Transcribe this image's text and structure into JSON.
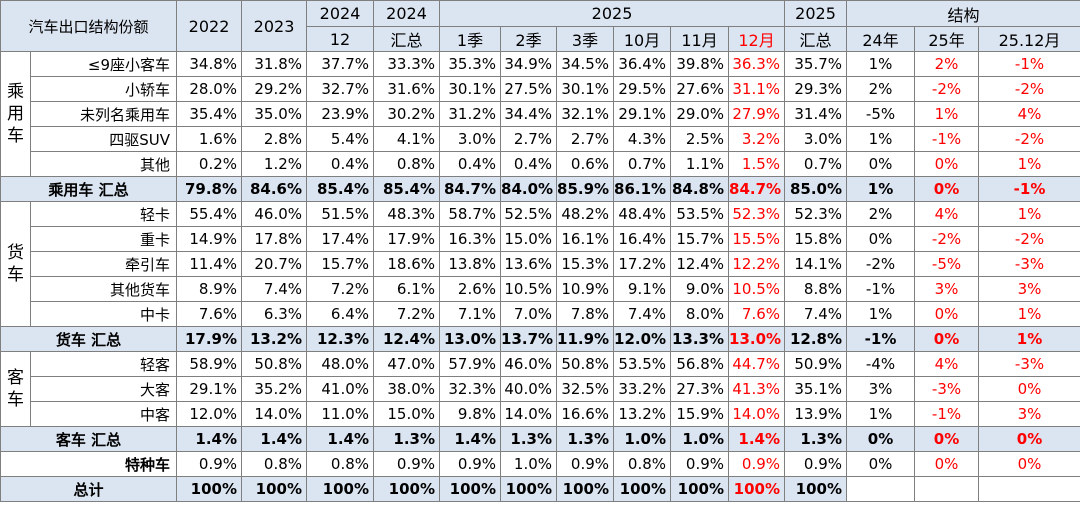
{
  "header": {
    "title": "汽车出口结构份额",
    "y2022": "2022",
    "y2023": "2023",
    "y2024a": "2024",
    "y2024a_sub": "12",
    "y2024b": "2024",
    "y2024b_sub": "汇总",
    "y2025": "2025",
    "q1": "1季",
    "q2": "2季",
    "q3": "3季",
    "m10": "10月",
    "m11": "11月",
    "m12": "12月",
    "y2025t": "2025",
    "y2025t_sub": "汇总",
    "structure": "结构",
    "s24": "24年",
    "s25": "25年",
    "s2512": "25.12月"
  },
  "groups": {
    "passenger": "乘用车",
    "truck": "货车",
    "bus": "客车"
  },
  "rows": [
    {
      "name": "≤9座小客车",
      "v": [
        "34.8%",
        "31.8%",
        "37.7%",
        "33.3%",
        "35.3%",
        "34.9%",
        "34.5%",
        "36.4%",
        "39.8%",
        "36.3%",
        "35.7%",
        "1%",
        "2%",
        "-1%"
      ]
    },
    {
      "name": "小轿车",
      "v": [
        "28.0%",
        "29.2%",
        "32.7%",
        "31.6%",
        "30.1%",
        "27.5%",
        "30.1%",
        "29.5%",
        "27.6%",
        "31.1%",
        "29.3%",
        "2%",
        "-2%",
        "-2%"
      ]
    },
    {
      "name": "未列名乘用车",
      "v": [
        "35.4%",
        "35.0%",
        "23.9%",
        "30.2%",
        "31.2%",
        "34.4%",
        "32.1%",
        "29.1%",
        "29.0%",
        "27.9%",
        "31.4%",
        "-5%",
        "1%",
        "4%"
      ]
    },
    {
      "name": "四驱SUV",
      "v": [
        "1.6%",
        "2.8%",
        "5.4%",
        "4.1%",
        "3.0%",
        "2.7%",
        "2.7%",
        "4.3%",
        "2.5%",
        "3.2%",
        "3.0%",
        "1%",
        "-1%",
        "-2%"
      ]
    },
    {
      "name": "其他",
      "v": [
        "0.2%",
        "1.2%",
        "0.4%",
        "0.8%",
        "0.4%",
        "0.4%",
        "0.6%",
        "0.7%",
        "1.1%",
        "1.5%",
        "0.7%",
        "0%",
        "0%",
        "1%"
      ]
    },
    {
      "name": "乘用车 汇总",
      "v": [
        "79.8%",
        "84.6%",
        "85.4%",
        "85.4%",
        "84.7%",
        "84.0%",
        "85.9%",
        "86.1%",
        "84.8%",
        "84.7%",
        "85.0%",
        "1%",
        "0%",
        "-1%"
      ]
    },
    {
      "name": "轻卡",
      "v": [
        "55.4%",
        "46.0%",
        "51.5%",
        "48.3%",
        "58.7%",
        "52.5%",
        "48.2%",
        "48.4%",
        "53.5%",
        "52.3%",
        "52.3%",
        "2%",
        "4%",
        "1%"
      ]
    },
    {
      "name": "重卡",
      "v": [
        "14.9%",
        "17.8%",
        "17.4%",
        "17.9%",
        "16.3%",
        "15.0%",
        "16.1%",
        "16.4%",
        "15.7%",
        "15.5%",
        "15.8%",
        "0%",
        "-2%",
        "-2%"
      ]
    },
    {
      "name": "牵引车",
      "v": [
        "11.4%",
        "20.7%",
        "15.7%",
        "18.6%",
        "13.8%",
        "13.6%",
        "15.3%",
        "17.2%",
        "12.4%",
        "12.2%",
        "14.1%",
        "-2%",
        "-5%",
        "-3%"
      ]
    },
    {
      "name": "其他货车",
      "v": [
        "8.9%",
        "7.4%",
        "7.2%",
        "6.1%",
        "2.6%",
        "10.5%",
        "10.9%",
        "9.1%",
        "9.0%",
        "10.5%",
        "8.8%",
        "-1%",
        "3%",
        "3%"
      ]
    },
    {
      "name": "中卡",
      "v": [
        "7.6%",
        "6.3%",
        "6.4%",
        "7.2%",
        "7.1%",
        "7.0%",
        "7.8%",
        "7.4%",
        "8.0%",
        "7.6%",
        "7.4%",
        "1%",
        "0%",
        "1%"
      ]
    },
    {
      "name": "货车 汇总",
      "v": [
        "17.9%",
        "13.2%",
        "12.3%",
        "12.4%",
        "13.0%",
        "13.7%",
        "11.9%",
        "12.0%",
        "13.3%",
        "13.0%",
        "12.8%",
        "-1%",
        "0%",
        "1%"
      ]
    },
    {
      "name": "轻客",
      "v": [
        "58.9%",
        "50.8%",
        "48.0%",
        "47.0%",
        "57.9%",
        "46.0%",
        "50.8%",
        "53.5%",
        "56.8%",
        "44.7%",
        "50.9%",
        "-4%",
        "4%",
        "-3%"
      ]
    },
    {
      "name": "大客",
      "v": [
        "29.1%",
        "35.2%",
        "41.0%",
        "38.0%",
        "32.3%",
        "40.0%",
        "32.5%",
        "33.2%",
        "27.3%",
        "41.3%",
        "35.1%",
        "3%",
        "-3%",
        "0%"
      ]
    },
    {
      "name": "中客",
      "v": [
        "12.0%",
        "14.0%",
        "11.0%",
        "15.0%",
        "9.8%",
        "14.0%",
        "16.6%",
        "13.2%",
        "15.9%",
        "14.0%",
        "13.9%",
        "1%",
        "-1%",
        "3%"
      ]
    },
    {
      "name": "客车 汇总",
      "v": [
        "1.4%",
        "1.4%",
        "1.4%",
        "1.3%",
        "1.4%",
        "1.3%",
        "1.3%",
        "1.0%",
        "1.0%",
        "1.4%",
        "1.3%",
        "0%",
        "0%",
        "0%"
      ]
    },
    {
      "name": "特种车",
      "v": [
        "0.9%",
        "0.8%",
        "0.8%",
        "0.9%",
        "0.9%",
        "1.0%",
        "0.9%",
        "0.8%",
        "0.9%",
        "0.9%",
        "0.9%",
        "0%",
        "0%",
        "0%"
      ]
    },
    {
      "name": "总计",
      "v": [
        "100%",
        "100%",
        "100%",
        "100%",
        "100%",
        "100%",
        "100%",
        "100%",
        "100%",
        "100%",
        "100%",
        "",
        "",
        ""
      ]
    }
  ]
}
